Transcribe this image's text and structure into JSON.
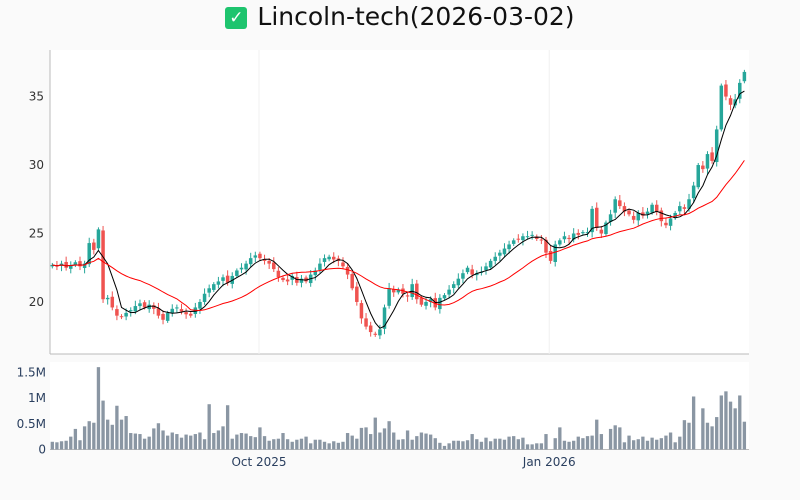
{
  "title": "Lincoln-tech(2026-03-02)",
  "title_icon": "check-box-icon",
  "colors": {
    "up": "#26a69a",
    "down": "#ef5350",
    "ma_short": "#000000",
    "ma_long": "#ff0000",
    "volume": "#8a96a3"
  },
  "chart_data": {
    "type": "candlestick",
    "title": "Lincoln-tech(2026-03-02)",
    "price_axis": {
      "ticks": [
        20,
        25,
        30,
        35
      ],
      "tick_labels": [
        "20",
        "25",
        "30",
        "35"
      ],
      "range": [
        16.2,
        38.4
      ]
    },
    "volume_axis": {
      "ticks": [
        0,
        0.5,
        1,
        1.5
      ],
      "tick_labels": [
        "0",
        "0.5M",
        "1M",
        "1.5M"
      ],
      "range": [
        0,
        1.7
      ]
    },
    "x_axis": {
      "tick_labels": [
        "Oct 2025",
        "Jan 2026"
      ],
      "tick_index": [
        44.8,
        107.7
      ]
    },
    "ma_windows": [
      5,
      20
    ],
    "close": [
      22.7,
      22.6,
      22.8,
      22.5,
      22.7,
      22.9,
      22.6,
      22.8,
      24.3,
      23.8,
      25.3,
      20.2,
      20.3,
      19.6,
      19.0,
      18.9,
      19.2,
      19.4,
      19.7,
      19.9,
      19.6,
      19.8,
      19.5,
      19.0,
      18.7,
      19.2,
      19.5,
      19.6,
      19.3,
      19.1,
      19.0,
      19.6,
      20.0,
      20.6,
      21.0,
      21.3,
      21.5,
      21.8,
      21.4,
      21.9,
      22.3,
      22.5,
      22.8,
      23.2,
      23.4,
      23.2,
      23.0,
      22.8,
      22.4,
      21.8,
      21.6,
      21.5,
      21.9,
      21.4,
      21.7,
      21.5,
      22.0,
      22.3,
      22.8,
      23.2,
      23.3,
      23.1,
      23.0,
      22.6,
      22.0,
      21.0,
      20.0,
      18.8,
      18.2,
      17.8,
      17.6,
      18.0,
      19.6,
      21.0,
      20.7,
      20.9,
      20.6,
      20.4,
      21.3,
      20.2,
      19.8,
      20.0,
      20.2,
      19.6,
      20.3,
      20.5,
      20.9,
      21.3,
      21.7,
      22.1,
      22.5,
      22.0,
      22.1,
      22.2,
      22.6,
      23.0,
      23.3,
      23.6,
      23.9,
      24.2,
      24.5,
      24.6,
      24.8,
      24.8,
      24.9,
      24.6,
      24.5,
      23.6,
      23.0,
      24.2,
      24.5,
      24.8,
      24.6,
      25.0,
      24.9,
      25.1,
      25.1,
      26.8,
      25.4,
      25.0,
      25.8,
      26.4,
      27.5,
      27.0,
      26.6,
      26.4,
      26.0,
      26.5,
      26.3,
      26.6,
      27.1,
      26.6,
      25.9,
      25.6,
      26.1,
      26.5,
      27.0,
      26.8,
      27.5,
      28.5,
      30.0,
      29.7,
      30.8,
      30.3,
      32.6,
      35.8,
      35.0,
      34.4,
      34.8,
      36.0,
      36.8
    ],
    "volume_millions": [
      0.15,
      0.14,
      0.16,
      0.17,
      0.25,
      0.4,
      0.18,
      0.45,
      0.55,
      0.52,
      1.6,
      0.95,
      0.58,
      0.48,
      0.85,
      0.58,
      0.65,
      0.32,
      0.31,
      0.3,
      0.21,
      0.25,
      0.41,
      0.51,
      0.37,
      0.27,
      0.33,
      0.3,
      0.23,
      0.29,
      0.27,
      0.3,
      0.33,
      0.2,
      0.88,
      0.32,
      0.37,
      0.45,
      0.86,
      0.21,
      0.29,
      0.32,
      0.31,
      0.26,
      0.24,
      0.43,
      0.26,
      0.17,
      0.2,
      0.21,
      0.32,
      0.2,
      0.15,
      0.19,
      0.21,
      0.25,
      0.12,
      0.19,
      0.19,
      0.15,
      0.12,
      0.16,
      0.13,
      0.15,
      0.32,
      0.27,
      0.21,
      0.42,
      0.43,
      0.3,
      0.62,
      0.33,
      0.41,
      0.55,
      0.33,
      0.19,
      0.2,
      0.37,
      0.19,
      0.26,
      0.33,
      0.31,
      0.29,
      0.22,
      0.13,
      0.07,
      0.12,
      0.17,
      0.17,
      0.16,
      0.18,
      0.3,
      0.2,
      0.15,
      0.23,
      0.16,
      0.21,
      0.21,
      0.19,
      0.25,
      0.26,
      0.2,
      0.23,
      0.1,
      0.1,
      0.12,
      0.12,
      0.3,
      0,
      0.22,
      0.43,
      0.17,
      0.15,
      0.17,
      0.25,
      0.22,
      0.26,
      0.27,
      0.58,
      0.3,
      0,
      0.4,
      0.47,
      0.43,
      0.14,
      0.27,
      0.18,
      0.2,
      0.25,
      0.17,
      0.23,
      0.19,
      0.22,
      0.27,
      0.33,
      0.14,
      0.25,
      0.57,
      0.52,
      1.03,
      0,
      0.8,
      0.52,
      0.45,
      0.63,
      1.05,
      1.13,
      0.93,
      0.8,
      1.05,
      0.54
    ]
  }
}
